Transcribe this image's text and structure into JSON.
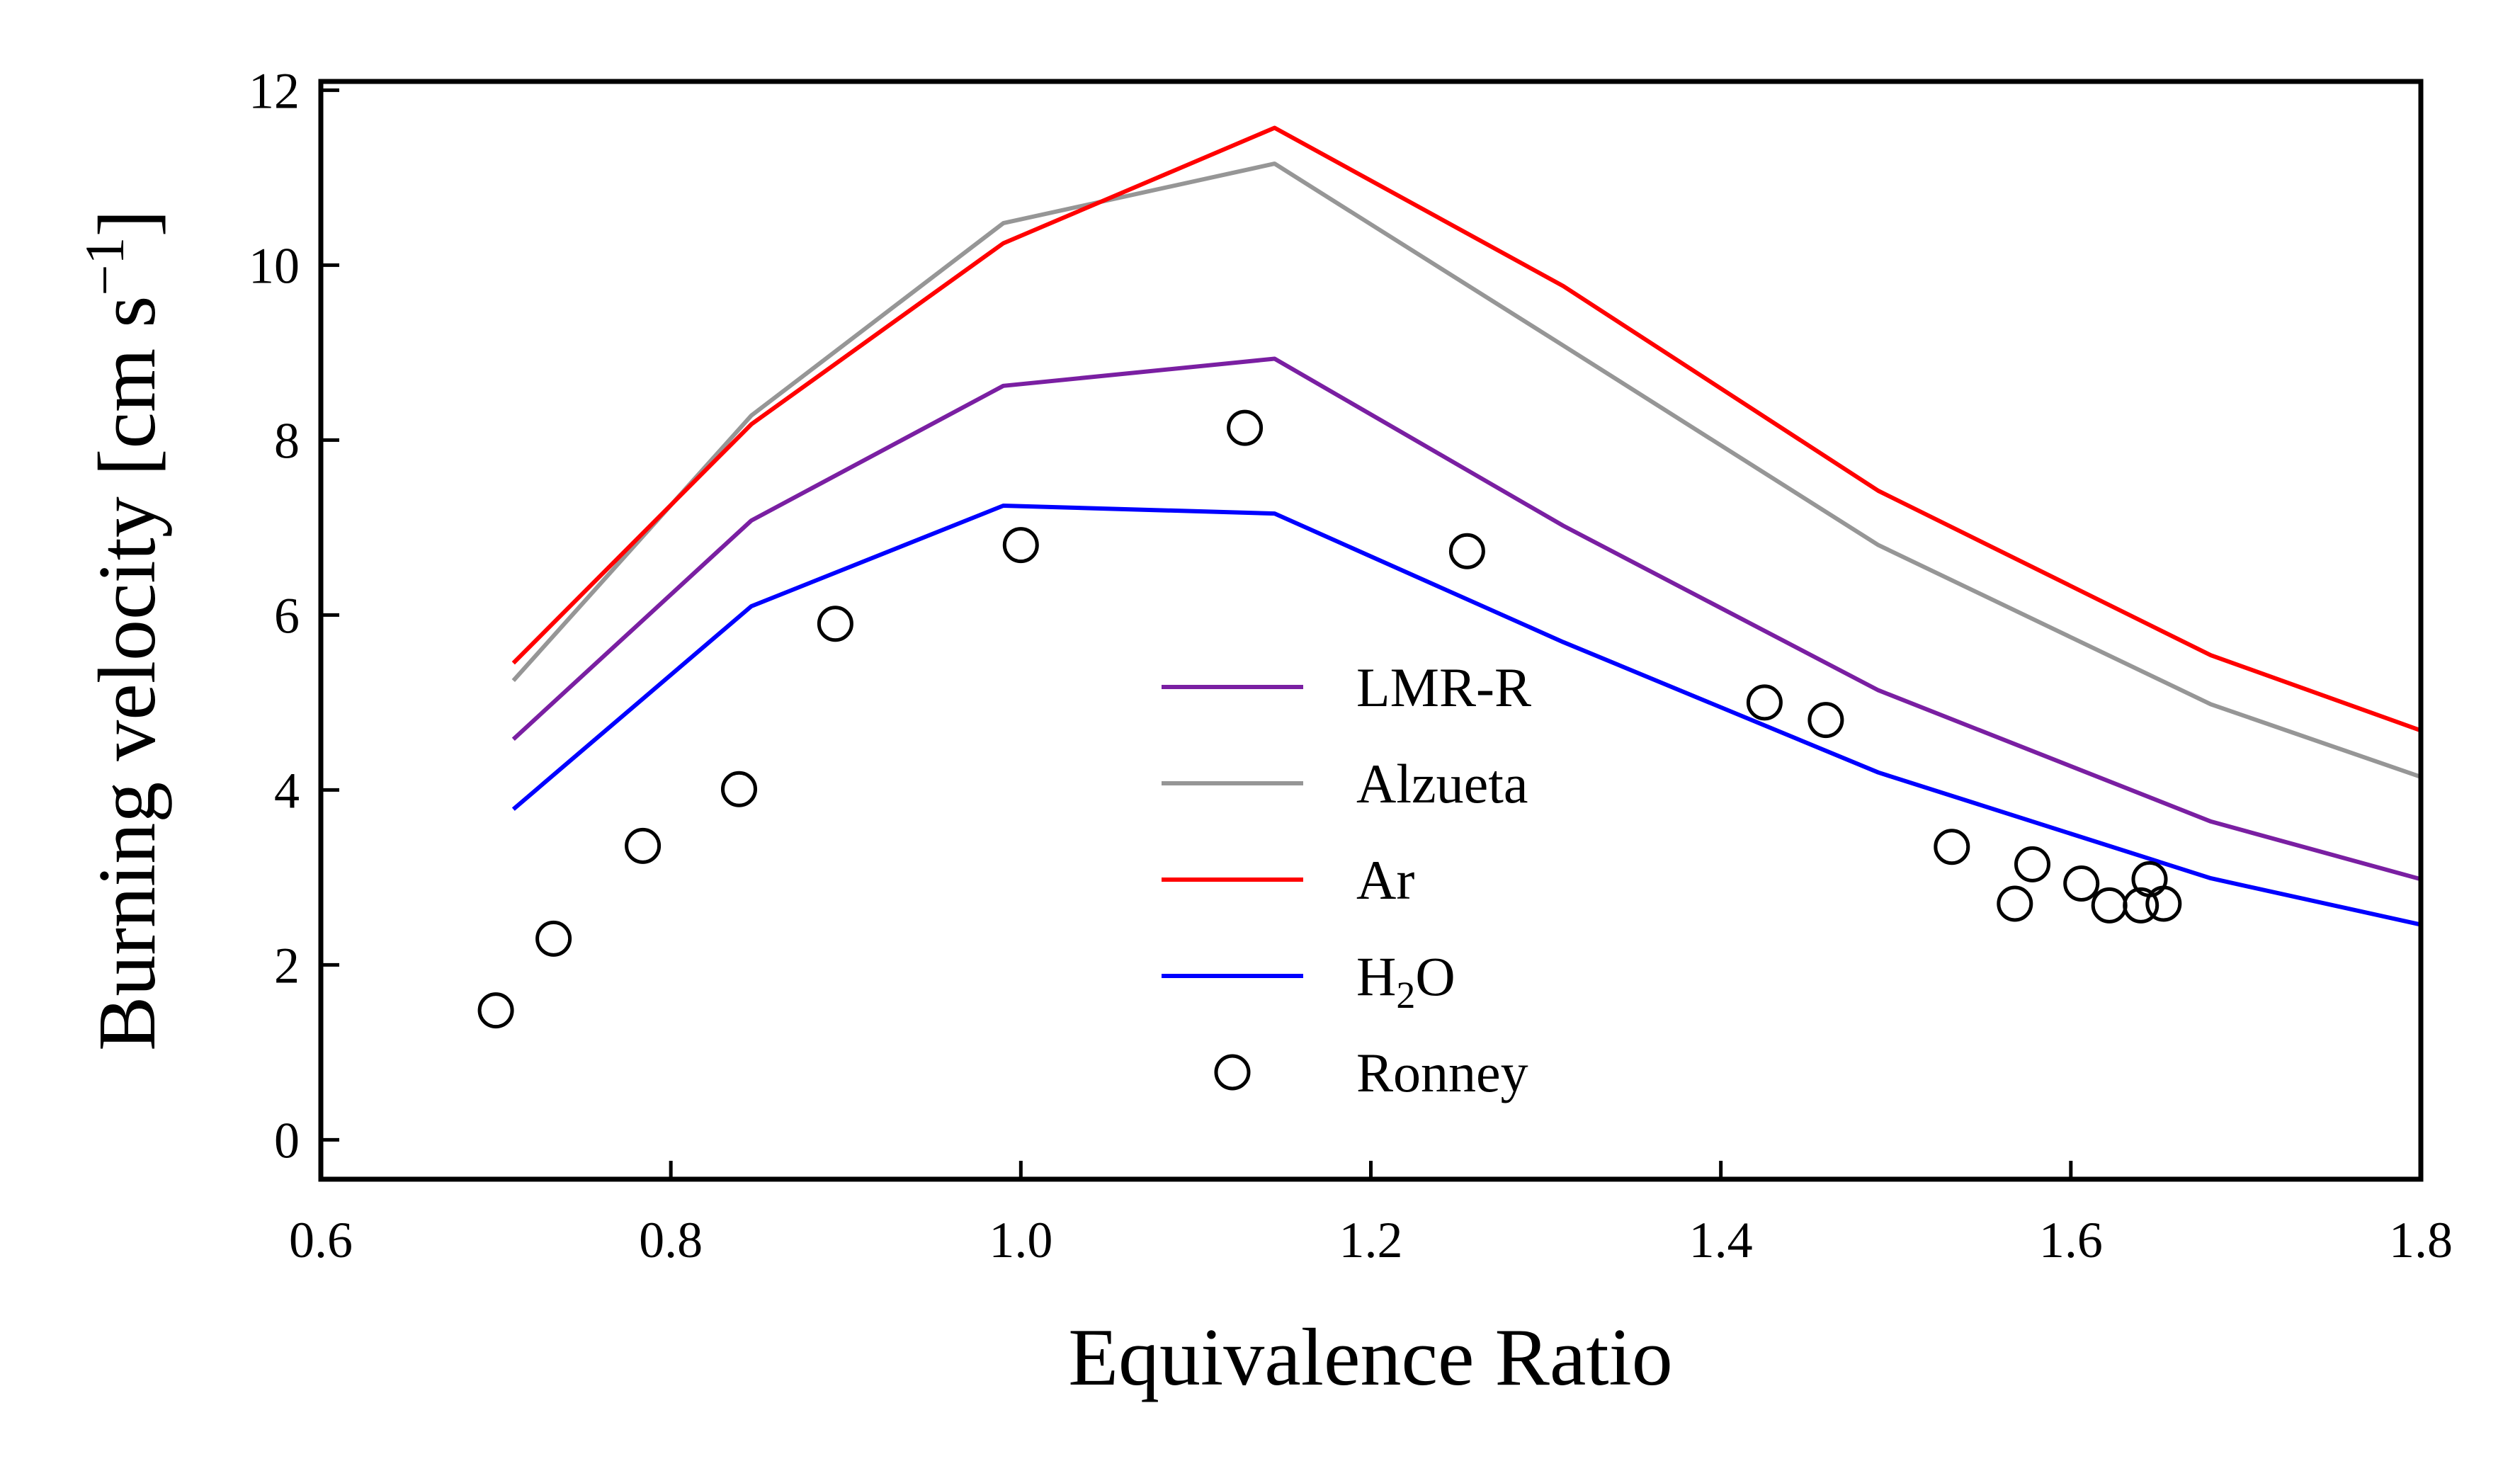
{
  "chart_data": {
    "type": "line",
    "xlabel": "Equivalence Ratio",
    "ylabel": "Burning velocity [cm s",
    "ylabel_unit_sup": "−1",
    "ylabel_close": "]",
    "xlim": [
      0.6,
      1.8
    ],
    "ylim": [
      -0.45,
      12.1
    ],
    "xticks": [
      0.6,
      0.8,
      1.0,
      1.2,
      1.4,
      1.6,
      1.8
    ],
    "xtick_labels": [
      "0.6",
      "0.8",
      "1.0",
      "1.2",
      "1.4",
      "1.6",
      "1.8"
    ],
    "yticks": [
      0,
      2,
      4,
      6,
      8,
      10,
      12
    ],
    "ytick_labels": [
      "0",
      "2",
      "4",
      "6",
      "8",
      "10",
      "12"
    ],
    "grid": false,
    "legend_position": "center-right",
    "x": [
      0.71,
      0.846,
      0.99,
      1.145,
      1.31,
      1.49,
      1.68,
      1.8
    ],
    "series": [
      {
        "name": "LMR-R",
        "color": "#7a1fa2",
        "values": [
          4.58,
          7.08,
          8.62,
          8.93,
          7.02,
          5.14,
          3.64,
          2.98
        ]
      },
      {
        "name": "Alzueta",
        "color": "#969696",
        "values": [
          5.25,
          8.28,
          10.48,
          11.16,
          9.08,
          6.8,
          4.98,
          4.15
        ]
      },
      {
        "name": "Ar",
        "color": "#ff0000",
        "values": [
          5.45,
          8.18,
          10.25,
          11.57,
          9.76,
          7.42,
          5.54,
          4.68
        ]
      },
      {
        "name": "H",
        "name_sub": "2",
        "name_tail": "O",
        "color": "#0000ff",
        "values": [
          3.78,
          6.1,
          7.25,
          7.16,
          5.69,
          4.2,
          2.99,
          2.46
        ]
      }
    ],
    "scatter": {
      "name": "Ronney",
      "color": "#000000",
      "points": [
        [
          0.7,
          1.48
        ],
        [
          0.733,
          2.3
        ],
        [
          0.784,
          3.36
        ],
        [
          0.839,
          4.01
        ],
        [
          0.894,
          5.9
        ],
        [
          1.0,
          6.8
        ],
        [
          1.128,
          8.14
        ],
        [
          1.255,
          6.73
        ],
        [
          1.425,
          5.0
        ],
        [
          1.46,
          4.8
        ],
        [
          1.532,
          3.35
        ],
        [
          1.568,
          2.7
        ],
        [
          1.578,
          3.15
        ],
        [
          1.606,
          2.93
        ],
        [
          1.622,
          2.68
        ],
        [
          1.64,
          2.68
        ],
        [
          1.645,
          2.98
        ],
        [
          1.653,
          2.7
        ]
      ]
    }
  }
}
